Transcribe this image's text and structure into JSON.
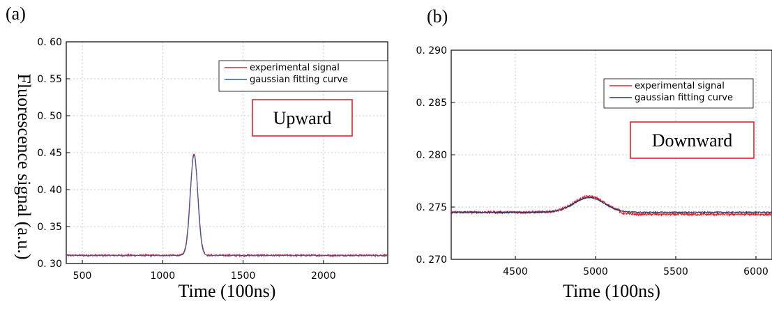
{
  "chart_data": [
    {
      "panel": "(a)",
      "type": "line",
      "xlabel": "Time (100ns)",
      "ylabel": "Fluorescence signal (a.u.)",
      "xlim": [
        400,
        2400
      ],
      "ylim": [
        0.3,
        0.6
      ],
      "xticks": [
        500,
        1000,
        1500,
        2000
      ],
      "yticks": [
        0.3,
        0.35,
        0.4,
        0.45,
        0.5,
        0.55,
        0.6
      ],
      "ytick_labels": [
        "0. 30",
        "0. 35",
        "0. 40",
        "0. 45",
        "0. 50",
        "0. 55",
        "0. 60"
      ],
      "xtick_labels": [
        "500",
        "1000",
        "1500",
        "2000"
      ],
      "annotation": "Upward",
      "legend": {
        "placement": "top-right"
      },
      "series": [
        {
          "name": "experimental signal",
          "color": "#e8212b",
          "baseline": 0.311,
          "peak_x": 1195,
          "peak_y": 0.449,
          "sigma": 24,
          "noise": 0.0012
        },
        {
          "name": "gaussian fitting curve",
          "color": "#2f5aa8",
          "baseline": 0.311,
          "peak_x": 1195,
          "peak_y": 0.447,
          "sigma": 23,
          "noise": 0.0
        }
      ]
    },
    {
      "panel": "(b)",
      "type": "line",
      "xlabel": "Time (100ns)",
      "ylabel": "",
      "xlim": [
        4100,
        6100
      ],
      "ylim": [
        0.27,
        0.29
      ],
      "xticks": [
        4500,
        5000,
        5500,
        6000
      ],
      "yticks": [
        0.27,
        0.275,
        0.28,
        0.285,
        0.29
      ],
      "ytick_labels": [
        "0. 270",
        "0. 275",
        "0. 280",
        "0. 285",
        "0. 290"
      ],
      "xtick_labels": [
        "4500",
        "5000",
        "5500",
        "6000"
      ],
      "annotation": "Downward",
      "legend": {
        "placement": "top-right"
      },
      "series": [
        {
          "name": "experimental signal",
          "color": "#e8212b",
          "baseline": 0.2745,
          "step_after": 0.2743,
          "peak_x": 4960,
          "peak_y": 0.276,
          "sigma": 95,
          "noise": 0.00012
        },
        {
          "name": "gaussian fitting curve",
          "color": "#1f3a6e",
          "baseline": 0.2745,
          "step_after": 0.2745,
          "peak_x": 4960,
          "peak_y": 0.2759,
          "sigma": 95,
          "noise": 5e-05
        }
      ]
    }
  ]
}
